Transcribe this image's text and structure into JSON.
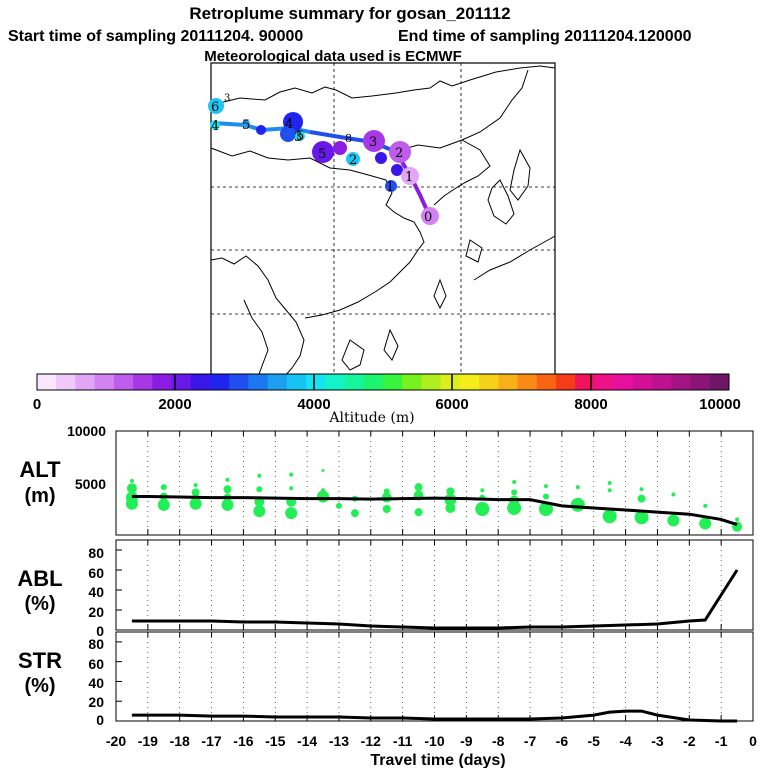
{
  "header": {
    "title": "Retroplume summary for gosan_201112",
    "start_label": "Start time of sampling 20111204. 90000",
    "end_label": "End time of sampling 20111204.120000",
    "met_label": "Meteorological data used is ECMWF"
  },
  "colorbar": {
    "ticks": [
      "0",
      "2000",
      "4000",
      "6000",
      "8000",
      "10000"
    ],
    "title": "Altitude (m)",
    "colors": [
      "#fbe6ff",
      "#f1c8fb",
      "#e3a6f7",
      "#d282f2",
      "#bf5ceb",
      "#a838e6",
      "#8b1ce4",
      "#6818e8",
      "#3a16ea",
      "#1f24f0",
      "#1f4fef",
      "#1c78ef",
      "#1d9ff1",
      "#15c4f3",
      "#16e2f1",
      "#14f3c8",
      "#16f49c",
      "#1cf46e",
      "#38f43e",
      "#78f21e",
      "#aef01d",
      "#dcee1c",
      "#f4ec1b",
      "#f6d11a",
      "#f8b018",
      "#f98a16",
      "#f96314",
      "#f63c16",
      "#f0125c",
      "#f0108a",
      "#e80f9f",
      "#d30f98",
      "#bd118f",
      "#a41383",
      "#8a1576",
      "#6e1766"
    ]
  },
  "chart_data": [
    {
      "type": "line",
      "name": "ALT",
      "ylabel": "ALT",
      "yunit": "(m)",
      "ylim": [
        0,
        10000
      ],
      "yticks": [
        "10000",
        "5000"
      ],
      "x": [
        -19.5,
        -19,
        -18,
        -17,
        -16,
        -15,
        -14,
        -13,
        -12,
        -11,
        -10,
        -9,
        -8,
        -7,
        -6,
        -5,
        -4,
        -3,
        -2,
        -1,
        -0.5
      ],
      "y": [
        3700,
        3700,
        3650,
        3600,
        3600,
        3550,
        3500,
        3500,
        3450,
        3500,
        3550,
        3500,
        3400,
        3400,
        2800,
        2600,
        2400,
        2200,
        2000,
        1500,
        1000
      ],
      "scatter_x": [
        -19.5,
        -19.5,
        -19.5,
        -19.5,
        -18.5,
        -18.5,
        -18.5,
        -17.5,
        -17.5,
        -17.5,
        -17.5,
        -16.5,
        -16.5,
        -16.5,
        -16.5,
        -15.5,
        -15.5,
        -15.5,
        -15.5,
        -14.5,
        -14.5,
        -14.5,
        -14.5,
        -13.5,
        -13.5,
        -13.5,
        -13,
        -12.5,
        -12.5,
        -11.5,
        -11.5,
        -11.5,
        -10.5,
        -10.5,
        -10.5,
        -9.5,
        -9.5,
        -9.5,
        -8.5,
        -8.5,
        -8.5,
        -7.5,
        -7.5,
        -7.5,
        -7.5,
        -6.5,
        -6.5,
        -6.5,
        -5.5,
        -5.5,
        -4.5,
        -4.5,
        -4.5,
        -3.5,
        -3.5,
        -3.5,
        -2.5,
        -2.5,
        -1.5,
        -1.5,
        -0.5,
        -0.5
      ],
      "scatter_y": [
        5200,
        4500,
        3600,
        3000,
        4600,
        3700,
        2900,
        4800,
        4100,
        3500,
        3000,
        5300,
        4400,
        3600,
        2900,
        5700,
        4400,
        3200,
        2300,
        5800,
        4500,
        3200,
        2100,
        6200,
        4300,
        3700,
        2800,
        3500,
        2100,
        4200,
        3600,
        2500,
        4600,
        3800,
        2200,
        4200,
        3400,
        2600,
        4300,
        3600,
        2500,
        5100,
        4100,
        3300,
        2600,
        4700,
        3700,
        2500,
        4600,
        2900,
        5000,
        4300,
        1800,
        4400,
        3500,
        1700,
        3900,
        1400,
        2800,
        1100,
        1500,
        800
      ],
      "scatter_r": [
        2,
        5,
        6,
        6,
        3,
        4,
        6,
        2,
        4,
        4,
        6,
        2,
        4,
        4,
        6,
        2,
        3,
        5,
        6,
        2,
        2,
        5,
        6,
        1.5,
        2,
        6,
        3,
        3,
        4,
        3,
        5,
        4,
        4,
        5,
        4,
        4,
        6,
        5,
        2,
        3,
        7,
        2,
        3,
        5,
        7,
        2,
        3,
        7,
        2,
        7,
        2,
        2,
        7,
        2,
        4,
        7,
        2,
        6,
        2,
        6,
        2,
        5
      ]
    },
    {
      "type": "line",
      "name": "ABL",
      "ylabel": "ABL",
      "yunit": "(%)",
      "ylim": [
        0,
        90
      ],
      "yticks": [
        "80",
        "60",
        "40",
        "20",
        "0"
      ],
      "x": [
        -19.5,
        -18,
        -17,
        -16,
        -15,
        -14,
        -13,
        -12,
        -11,
        -10,
        -9,
        -8,
        -7,
        -6,
        -5,
        -4,
        -3,
        -2,
        -1.5,
        -1,
        -0.5
      ],
      "y": [
        9,
        9,
        9,
        8,
        8,
        7,
        6,
        4,
        3,
        2,
        2,
        2,
        3,
        3,
        4,
        5,
        6,
        9,
        10,
        35,
        60
      ]
    },
    {
      "type": "line",
      "name": "STR",
      "ylabel": "STR",
      "yunit": "(%)",
      "ylim": [
        0,
        90
      ],
      "yticks": [
        "80",
        "60",
        "40",
        "20",
        "0"
      ],
      "x": [
        -19.5,
        -18,
        -17,
        -16,
        -15,
        -14,
        -13,
        -12,
        -11,
        -10,
        -9,
        -8,
        -7,
        -6,
        -5,
        -4.5,
        -4,
        -3.5,
        -3,
        -2,
        -1,
        -0.5
      ],
      "y": [
        6,
        6,
        5,
        5,
        4,
        4,
        4,
        3,
        3,
        2,
        2,
        2,
        2,
        3,
        6,
        9,
        10,
        10,
        6,
        1,
        0,
        0
      ],
      "xlabel": "Travel time (days)",
      "xlim": [
        -20,
        0
      ],
      "xticks": [
        "-20",
        "-19",
        "-18",
        "-17",
        "-16",
        "-15",
        "-14",
        "-13",
        "-12",
        "-11",
        "-10",
        "-9",
        "-8",
        "-7",
        "-6",
        "-5",
        "-4",
        "-3",
        "-2",
        "-1",
        "0"
      ]
    }
  ],
  "map": {
    "labels": [
      {
        "text": "6",
        "color": "#1cc8f3"
      },
      {
        "text": "3",
        "color": "#2f9f1c"
      },
      {
        "text": "4",
        "color": "#1cf4d0"
      },
      {
        "text": "5",
        "color": "#1d80ef"
      },
      {
        "text": "4",
        "color": "#1f24f0"
      },
      {
        "text": "3",
        "color": "#1d80ef"
      },
      {
        "text": "5",
        "color": "#1cc8f3"
      },
      {
        "text": "5",
        "color": "#6818e8"
      },
      {
        "text": "8",
        "color": "#8b1ce4"
      },
      {
        "text": "2",
        "color": "#1cc8f3"
      },
      {
        "text": "3",
        "color": "#a838e6"
      },
      {
        "text": "2",
        "color": "#bf5ceb"
      },
      {
        "text": "1",
        "color": "#d282f2"
      },
      {
        "text": "1",
        "color": "#1f4fef"
      },
      {
        "text": "0",
        "color": "#d282f2"
      }
    ]
  }
}
